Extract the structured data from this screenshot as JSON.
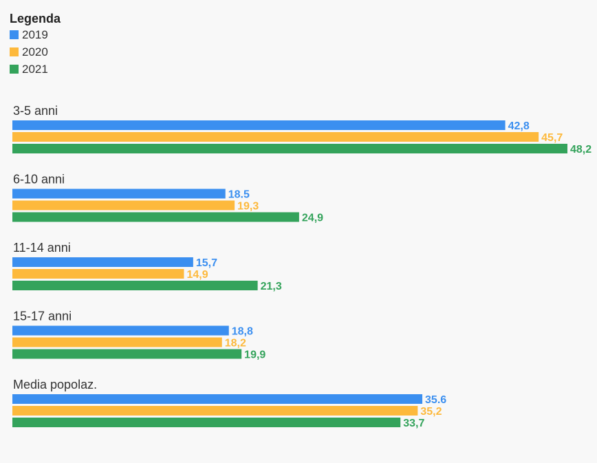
{
  "legend": {
    "title": "Legenda"
  },
  "chart_data": {
    "type": "bar",
    "orientation": "horizontal",
    "categories": [
      "3-5 anni",
      "6-10 anni",
      "11-14 anni",
      "15-17 anni",
      "Media popolaz."
    ],
    "series": [
      {
        "name": "2019",
        "color": "#3b8ff0",
        "values": [
          42.8,
          18.5,
          15.7,
          18.8,
          35.6
        ],
        "labels": [
          "42,8",
          "18.5",
          "15,7",
          "18,8",
          "35.6"
        ]
      },
      {
        "name": "2020",
        "color": "#fdb93c",
        "values": [
          45.7,
          19.3,
          14.9,
          18.2,
          35.2
        ],
        "labels": [
          "45,7",
          "19,3",
          "14,9",
          "18,2",
          "35,2"
        ]
      },
      {
        "name": "2021",
        "color": "#34a35b",
        "values": [
          48.2,
          24.9,
          21.3,
          19.9,
          33.7
        ],
        "labels": [
          "48,2",
          "24,9",
          "21,3",
          "19,9",
          "33,7"
        ]
      }
    ],
    "xlim": [
      0,
      48.2
    ],
    "grid": false,
    "legend_position": "top-left",
    "data_labels": true
  }
}
